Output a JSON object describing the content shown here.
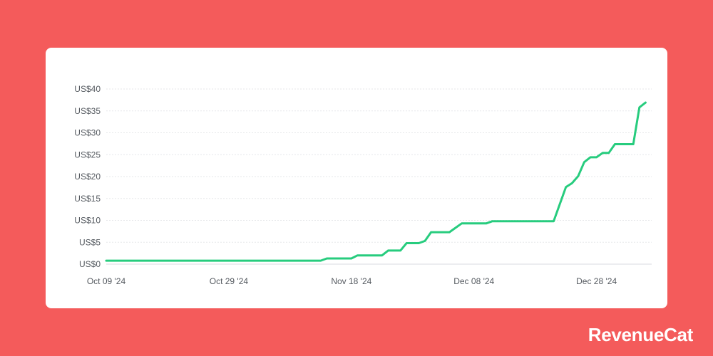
{
  "brand": {
    "name": "RevenueCat"
  },
  "chart_data": {
    "type": "line",
    "title": "",
    "xlabel": "",
    "ylabel": "",
    "ylim": [
      0,
      40
    ],
    "y_ticks": [
      0,
      5,
      10,
      15,
      20,
      25,
      30,
      35,
      40
    ],
    "y_tick_labels": [
      "US$0",
      "US$5",
      "US$10",
      "US$15",
      "US$20",
      "US$25",
      "US$30",
      "US$35",
      "US$40"
    ],
    "x_range": [
      "2024-10-09",
      "2025-01-06"
    ],
    "x_ticks": [
      "2024-10-09",
      "2024-10-29",
      "2024-11-18",
      "2024-12-08",
      "2024-12-28"
    ],
    "x_tick_labels": [
      "Oct 09 '24",
      "Oct 29 '24",
      "Nov 18 '24",
      "Dec 08 '24",
      "Dec 28 '24"
    ],
    "grid": true,
    "series": [
      {
        "name": "",
        "color": "#27CC7E",
        "points": [
          [
            "2024-10-09",
            0.8
          ],
          [
            "2024-11-13",
            0.8
          ],
          [
            "2024-11-14",
            1.3
          ],
          [
            "2024-11-17",
            1.3
          ],
          [
            "2024-11-18",
            1.3
          ],
          [
            "2024-11-19",
            2.0
          ],
          [
            "2024-11-23",
            2.0
          ],
          [
            "2024-11-24",
            3.1
          ],
          [
            "2024-11-26",
            3.1
          ],
          [
            "2024-11-27",
            4.8
          ],
          [
            "2024-11-29",
            4.8
          ],
          [
            "2024-11-30",
            5.3
          ],
          [
            "2024-12-01",
            7.3
          ],
          [
            "2024-12-04",
            7.3
          ],
          [
            "2024-12-06",
            9.3
          ],
          [
            "2024-12-10",
            9.3
          ],
          [
            "2024-12-11",
            9.8
          ],
          [
            "2024-12-21",
            9.8
          ],
          [
            "2024-12-23",
            17.6
          ],
          [
            "2024-12-24",
            18.5
          ],
          [
            "2024-12-25",
            20.1
          ],
          [
            "2024-12-26",
            23.3
          ],
          [
            "2024-12-27",
            24.4
          ],
          [
            "2024-12-28",
            24.4
          ],
          [
            "2024-12-29",
            25.4
          ],
          [
            "2024-12-30",
            25.4
          ],
          [
            "2024-12-31",
            27.4
          ],
          [
            "2025-01-03",
            27.4
          ],
          [
            "2025-01-04",
            35.8
          ],
          [
            "2025-01-05",
            36.9
          ]
        ]
      }
    ]
  }
}
